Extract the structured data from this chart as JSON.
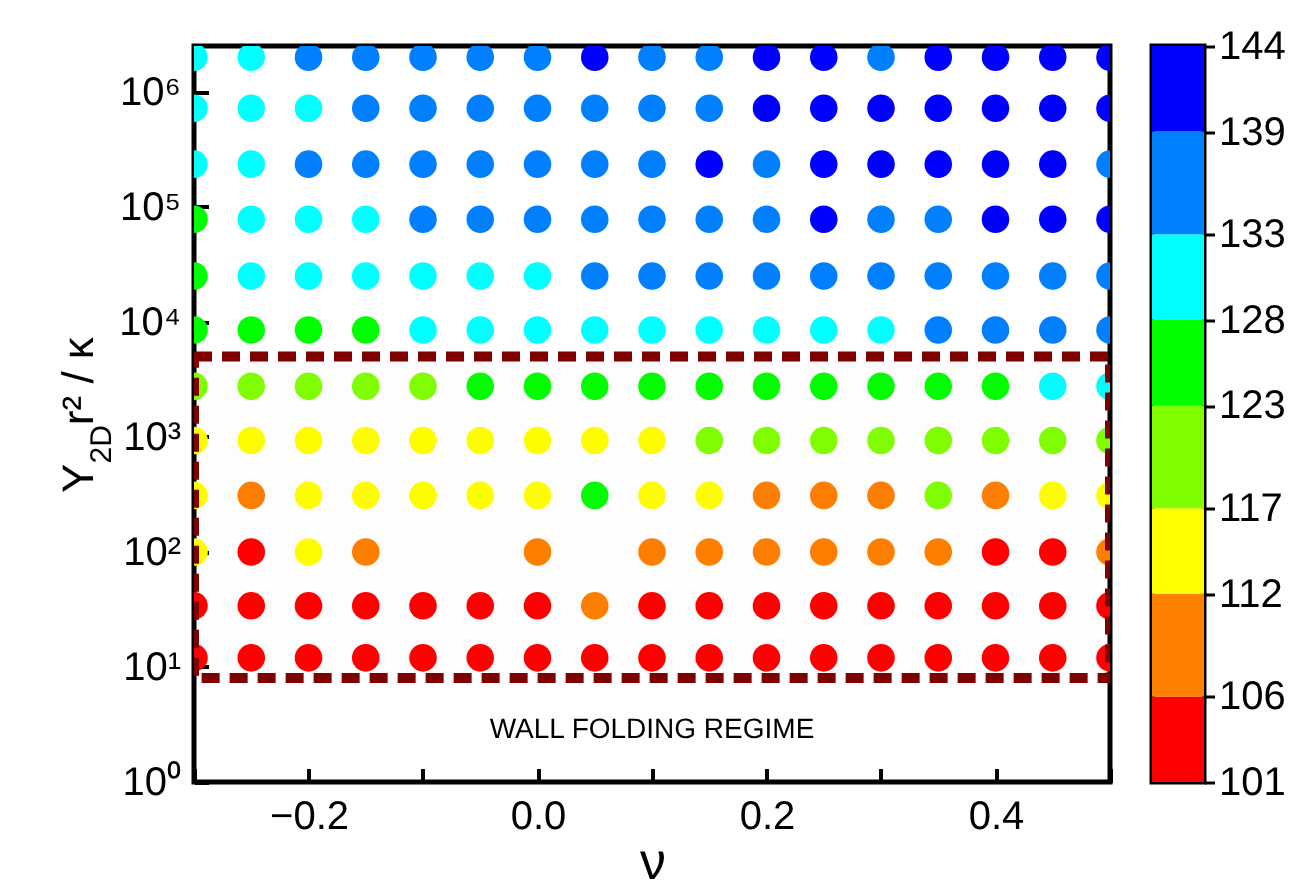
{
  "chart_data": {
    "type": "scatter",
    "xlabel": "ν",
    "ylabel": "Y$_{2D}$r² / κ",
    "xlim": [
      -0.3,
      0.5
    ],
    "xticks": [
      {
        "value": -0.3,
        "label": null
      },
      {
        "value": -0.2,
        "label": "−0.2"
      },
      {
        "value": -0.1,
        "label": null
      },
      {
        "value": 0,
        "label": "0.0"
      },
      {
        "value": 0.1,
        "label": null
      },
      {
        "value": 0.2,
        "label": "0.2"
      },
      {
        "value": 0.3,
        "label": null
      },
      {
        "value": 0.4,
        "label": "0.4"
      },
      {
        "value": 0.5,
        "label": null
      }
    ],
    "ylim": [
      1,
      2500000
    ],
    "log": "y",
    "yticks": [
      {
        "value": 1,
        "label": "10⁰"
      },
      {
        "value": 10,
        "label": "10¹"
      },
      {
        "value": 100,
        "label": "10²"
      },
      {
        "value": 1000,
        "label": "10³"
      },
      {
        "value": 10000,
        "label": "10⁴"
      },
      {
        "value": 100000,
        "label": "10⁵"
      },
      {
        "value": 1000000,
        "label": "10⁶"
      }
    ],
    "clim": [
      101,
      144
    ],
    "cticks": [
      101,
      106,
      112,
      117,
      123,
      128,
      133,
      139,
      144
    ],
    "marker": "circle",
    "grid": false,
    "bands": [
      {
        "axis": "y",
        "from": 8,
        "to": 5000,
        "label": "WALL FOLDING REGIME",
        "color": "#800000"
      }
    ],
    "series": [
      {
        "color": "#ff0000",
        "x": [
          -0.3,
          -0.25,
          -0.2,
          -0.15,
          -0.1,
          -0.05,
          0,
          0.05,
          0.1,
          0.15,
          0.2,
          0.25,
          0.3,
          0.35,
          0.4,
          0.45,
          0.5,
          -0.3,
          -0.25,
          -0.2,
          -0.15,
          -0.1,
          -0.05,
          0,
          0.1,
          0.15,
          0.2,
          0.25,
          0.3,
          0.35,
          0.4,
          0.45,
          0.5,
          -0.25,
          0.4,
          0.45
        ],
        "values": [
          12,
          12,
          12,
          12,
          12,
          12,
          12,
          12,
          12,
          12,
          12,
          12,
          12,
          12,
          12,
          12,
          12,
          34,
          34,
          34,
          34,
          34,
          34,
          34,
          34,
          34,
          34,
          34,
          34,
          34,
          34,
          34,
          34,
          100,
          100,
          100
        ]
      },
      {
        "color": "#ff8000",
        "x": [
          0.05,
          -0.15,
          0,
          0.1,
          0.15,
          0.2,
          0.25,
          0.3,
          0.35,
          0.5,
          -0.25,
          0.2,
          0.25,
          0.3,
          0.4
        ],
        "values": [
          34,
          100,
          100,
          100,
          100,
          100,
          100,
          100,
          100,
          100,
          310,
          310,
          310,
          310,
          310
        ]
      },
      {
        "color": "#ffff00",
        "x": [
          -0.3,
          -0.2,
          -0.3,
          -0.2,
          -0.15,
          -0.1,
          -0.05,
          0,
          0.1,
          0.15,
          0.45,
          0.5,
          -0.3,
          -0.25,
          -0.2,
          -0.15,
          -0.1,
          -0.05,
          0,
          0.05,
          0.1
        ],
        "values": [
          100,
          100,
          310,
          310,
          310,
          310,
          310,
          310,
          310,
          310,
          310,
          310,
          930,
          930,
          930,
          930,
          930,
          930,
          930,
          930,
          930
        ]
      },
      {
        "color": "#80ff00",
        "x": [
          0.35,
          0.15,
          0.2,
          0.25,
          0.3,
          0.35,
          0.4,
          0.45,
          0.5,
          -0.3,
          -0.25,
          -0.2,
          -0.15,
          -0.1
        ],
        "values": [
          310,
          930,
          930,
          930,
          930,
          930,
          930,
          930,
          930,
          2750,
          2750,
          2750,
          2750,
          2750
        ]
      },
      {
        "color": "#00ff00",
        "x": [
          0.05,
          -0.05,
          0,
          0.05,
          0.1,
          0.15,
          0.2,
          0.25,
          0.3,
          0.35,
          0.4,
          -0.3,
          -0.25,
          -0.2,
          -0.15,
          -0.3,
          -0.3
        ],
        "values": [
          310,
          2750,
          2750,
          2750,
          2750,
          2750,
          2750,
          2750,
          2750,
          2750,
          2750,
          8500,
          8500,
          8500,
          8500,
          25000,
          78000
        ]
      },
      {
        "color": "#00ffff",
        "x": [
          0.45,
          0.5,
          -0.1,
          -0.05,
          0,
          0.05,
          0.1,
          0.15,
          0.2,
          0.25,
          0.3,
          -0.25,
          -0.2,
          -0.15,
          -0.1,
          -0.05,
          0,
          -0.25,
          -0.2,
          -0.15,
          -0.3,
          -0.25,
          -0.3,
          -0.25,
          -0.2,
          -0.3,
          -0.25
        ],
        "values": [
          2750,
          2750,
          8500,
          8500,
          8500,
          8500,
          8500,
          8500,
          8500,
          8500,
          8500,
          25000,
          25000,
          25000,
          25000,
          25000,
          25000,
          78000,
          78000,
          78000,
          235000,
          235000,
          720000,
          720000,
          720000,
          2000000,
          2000000
        ]
      },
      {
        "color": "#0080ff",
        "x": [
          0.35,
          0.4,
          0.45,
          0.5,
          0.05,
          0.1,
          0.15,
          0.2,
          0.25,
          0.3,
          0.35,
          0.4,
          0.45,
          0.5,
          -0.1,
          -0.05,
          0,
          0.05,
          0.1,
          0.15,
          0.2,
          0.3,
          0.35,
          -0.2,
          -0.15,
          -0.1,
          -0.05,
          0,
          0.05,
          0.1,
          0.2,
          0.5,
          -0.15,
          -0.1,
          -0.05,
          0,
          0.05,
          0.1,
          0.15,
          -0.2,
          -0.15,
          -0.1,
          -0.05,
          0,
          0.1,
          0.15,
          0.3
        ],
        "values": [
          8500,
          8500,
          8500,
          8500,
          25000,
          25000,
          25000,
          25000,
          25000,
          25000,
          25000,
          25000,
          25000,
          25000,
          78000,
          78000,
          78000,
          78000,
          78000,
          78000,
          78000,
          78000,
          78000,
          235000,
          235000,
          235000,
          235000,
          235000,
          235000,
          235000,
          235000,
          235000,
          720000,
          720000,
          720000,
          720000,
          720000,
          720000,
          720000,
          2000000,
          2000000,
          2000000,
          2000000,
          2000000,
          2000000,
          2000000,
          2000000
        ]
      },
      {
        "color": "#0000ff",
        "x": [
          0.25,
          0.4,
          0.45,
          0.5,
          0.15,
          0.25,
          0.3,
          0.35,
          0.4,
          0.45,
          0.2,
          0.25,
          0.3,
          0.35,
          0.4,
          0.45,
          0.5,
          0.05,
          0.2,
          0.25,
          0.35,
          0.4,
          0.45,
          0.5
        ],
        "values": [
          78000,
          78000,
          78000,
          78000,
          235000,
          235000,
          235000,
          235000,
          235000,
          235000,
          720000,
          720000,
          720000,
          720000,
          720000,
          720000,
          720000,
          2000000,
          2000000,
          2000000,
          2000000,
          2000000,
          2000000,
          2000000
        ]
      }
    ]
  }
}
